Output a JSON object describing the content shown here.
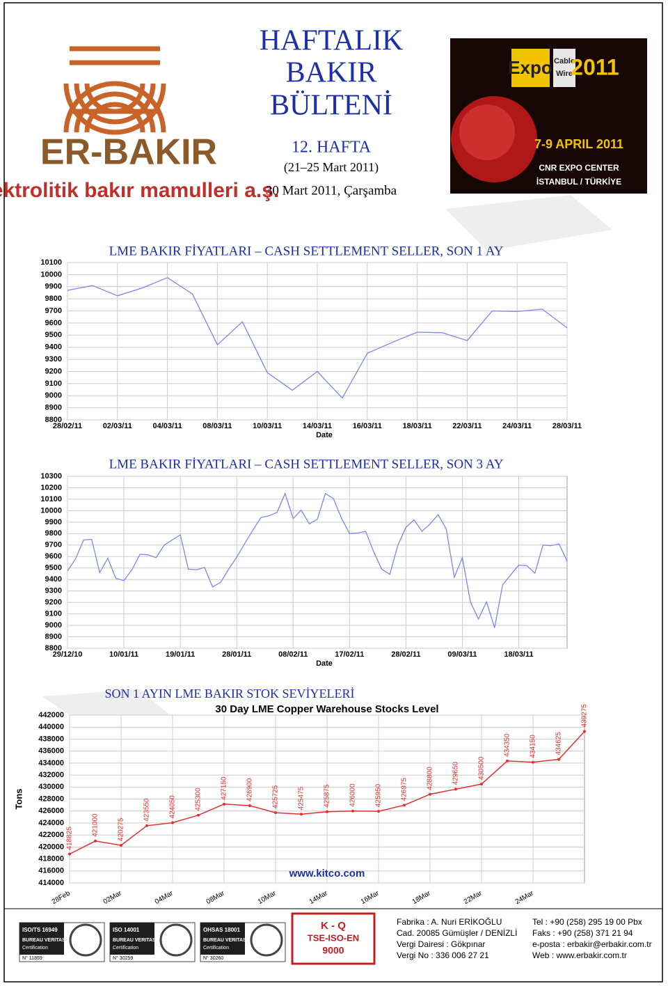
{
  "header": {
    "title_lines": [
      "HAFTALIK",
      "BAKIR",
      "BÜLTENİ"
    ],
    "week": "12. HAFTA",
    "range": "(21–25 Mart 2011)",
    "date": "30 Mart 2011, Çarşamba"
  },
  "logo": {
    "name": "ER-BAKIR",
    "tagline": "elektrolitik bakır mamulleri a.ş."
  },
  "expo": {
    "brand": "Expo",
    "sub": [
      "Cable",
      "Wire"
    ],
    "year": "2011",
    "dates": "7-9 APRIL 2011",
    "venue": "CNR EXPO CENTER",
    "city": "İSTANBUL / TÜRKİYE"
  },
  "chart_data": [
    {
      "type": "line",
      "title": "LME BAKIR FİYATLARI – CASH SETTLEMENT SELLER, SON 1 AY",
      "x_label": "Date",
      "color": "#7b86f0",
      "grid": true,
      "categories": [
        "28/02/11",
        null,
        "02/03/11",
        null,
        "04/03/11",
        null,
        "08/03/11",
        null,
        "10/03/11",
        null,
        "14/03/11",
        null,
        "16/03/11",
        null,
        "18/03/11",
        null,
        "22/03/11",
        null,
        "24/03/11",
        null,
        "28/03/11"
      ],
      "values": [
        9870,
        9910,
        9825,
        9890,
        9975,
        9840,
        9420,
        9610,
        9190,
        9045,
        9200,
        8980,
        9350,
        9440,
        9525,
        9520,
        9455,
        9700,
        9695,
        9715,
        9560
      ],
      "ylim": [
        8800,
        10100
      ],
      "yticks": [
        8800,
        8900,
        9000,
        9100,
        9200,
        9300,
        9400,
        9500,
        9600,
        9700,
        9800,
        9900,
        10000,
        10100
      ]
    },
    {
      "type": "line",
      "title": "LME BAKIR FİYATLARI – CASH SETTLEMENT SELLER, SON 3 AY",
      "x_label": "Date",
      "color": "#7b86f0",
      "grid": true,
      "categories": [
        "29/12/10",
        null,
        null,
        null,
        null,
        null,
        null,
        "10/01/11",
        null,
        null,
        null,
        null,
        null,
        null,
        "19/01/11",
        null,
        null,
        null,
        null,
        null,
        null,
        "28/01/11",
        null,
        null,
        null,
        null,
        null,
        null,
        "08/02/11",
        null,
        null,
        null,
        null,
        null,
        null,
        "17/02/11",
        null,
        null,
        null,
        null,
        null,
        null,
        "28/02/11",
        null,
        null,
        null,
        null,
        null,
        null,
        "09/03/11",
        null,
        null,
        null,
        null,
        null,
        null,
        "18/03/11",
        null,
        null,
        null,
        null,
        null,
        null
      ],
      "values": [
        9475,
        9580,
        9745,
        9750,
        9460,
        9585,
        9410,
        9390,
        9485,
        9620,
        9615,
        9590,
        9700,
        9745,
        9790,
        9490,
        9485,
        9505,
        9335,
        9375,
        9490,
        9595,
        9715,
        9830,
        9940,
        9955,
        9985,
        10150,
        9930,
        10005,
        9885,
        9925,
        10150,
        10105,
        9935,
        9800,
        9805,
        9820,
        9640,
        9490,
        9445,
        9700,
        9855,
        9920,
        9820,
        9885,
        9965,
        9840,
        9420,
        9590,
        9205,
        9055,
        9205,
        8980,
        9355,
        9440,
        9525,
        9520,
        9455,
        9700,
        9695,
        9710,
        9560
      ],
      "ylim": [
        8800,
        10300
      ],
      "yticks": [
        8800,
        8900,
        9000,
        9100,
        9200,
        9300,
        9400,
        9500,
        9600,
        9700,
        9800,
        9900,
        10000,
        10100,
        10200,
        10300
      ]
    },
    {
      "type": "line",
      "title": "SON 1 AYIN LME BAKIR STOK SEVİYELERİ",
      "subtitle": "30 Day LME Copper Warehouse Stocks Level",
      "y_label": "Tons",
      "source": "www.kitco.com",
      "color": "#e03030",
      "grid": true,
      "categories": [
        "28Feb",
        null,
        "02Mar",
        null,
        "04Mar",
        null,
        "08Mar",
        null,
        "10Mar",
        null,
        "14Mar",
        null,
        "16Mar",
        null,
        "18Mar",
        null,
        "22Mar",
        null,
        "24Mar",
        null,
        null
      ],
      "values": [
        418825,
        421000,
        420275,
        423550,
        424050,
        425300,
        427150,
        426900,
        425725,
        425475,
        425875,
        426000,
        425950,
        426975,
        428800,
        429650,
        430500,
        434350,
        434150,
        434625,
        439275
      ],
      "ylim": [
        414000,
        442000
      ],
      "yticks": [
        414000,
        416000,
        418000,
        420000,
        422000,
        424000,
        426000,
        428000,
        430000,
        432000,
        434000,
        436000,
        438000,
        440000,
        442000
      ]
    }
  ],
  "footer": {
    "certs": [
      {
        "standard": "ISO/TS 16949",
        "body": "BUREAU VERITAS",
        "label": "Certification",
        "number": "N° 11859"
      },
      {
        "standard": "ISO 14001",
        "body": "BUREAU VERITAS",
        "label": "Certification",
        "number": "N° 30259"
      },
      {
        "standard": "OHSAS 18001",
        "body": "BUREAU VERITAS",
        "label": "Certification",
        "number": "N° 30260"
      }
    ],
    "kq": [
      "K - Q",
      "TSE-ISO-EN",
      "9000"
    ],
    "address": [
      "Fabrika : A. Nuri ERİKOĞLU",
      "Cad. 20085 Gümüşler / DENİZLİ",
      "Vergi Dairesi : Gökpınar",
      "Vergi No : 336 006 27 21"
    ],
    "contact": [
      "Tel : +90 (258) 295 19 00 Pbx",
      "Faks : +90 (258) 371 21 94",
      "e-posta : erbakir@erbakir.com.tr",
      "Web : www.erbakir.com.tr"
    ]
  }
}
